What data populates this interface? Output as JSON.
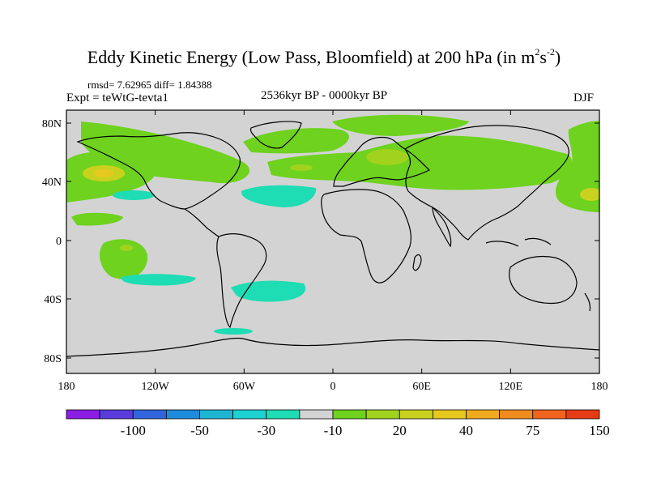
{
  "title": {
    "main": "Eddy Kinetic Energy (Low Pass, Bloomfield) at 200 hPa (in m",
    "sup1": "2",
    "mid": "s",
    "sup2": "-2",
    "close": ")"
  },
  "stats": "rmsd= 7.62965 diff= 1.84388",
  "experiment": "Expt = teWtG-tevta1",
  "period": "2536kyr BP - 0000kyr BP",
  "season": "DJF",
  "map": {
    "background_color": "#d3d3d3",
    "x_ticks": [
      "180",
      "120W",
      "60W",
      "0",
      "60E",
      "120E",
      "180"
    ],
    "y_ticks": [
      "80N",
      "40N",
      "0",
      "40S",
      "80S"
    ]
  },
  "colorbar": {
    "colors": [
      "#8c1ee6",
      "#5a3cdc",
      "#3264dc",
      "#1e8cdc",
      "#1eb4d2",
      "#1ed2d2",
      "#1edcb4",
      "#d3d3d3",
      "#6ed21e",
      "#a0d21e",
      "#c8d21e",
      "#e6c81e",
      "#f0aa1e",
      "#f08c1e",
      "#f0641e",
      "#e63c14"
    ],
    "labels": [
      "-100",
      "-50",
      "-30",
      "-10",
      "20",
      "40",
      "75",
      "150"
    ]
  }
}
